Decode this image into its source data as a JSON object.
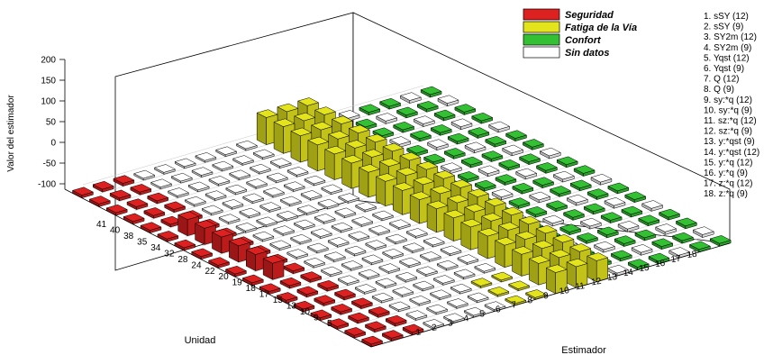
{
  "chart_data": {
    "type": "bar3d",
    "zlabel": "Valor del estimador",
    "xlabel": "Estimador",
    "ylabel": "Unidad",
    "z_ticks": [
      "200",
      "150",
      "100",
      "50",
      "0",
      "-50",
      "-100"
    ],
    "z_range": [
      -100,
      200
    ],
    "x_ticks": [
      "1",
      "2",
      "3",
      "4",
      "5",
      "6",
      "7",
      "8",
      "9",
      "10",
      "11",
      "12",
      "13",
      "14",
      "15",
      "16",
      "17",
      "18"
    ],
    "y_ticks": [
      "5",
      "9",
      "10",
      "13",
      "15",
      "17",
      "18",
      "19",
      "20",
      "22",
      "24",
      "28",
      "32",
      "34",
      "35",
      "38",
      "40",
      "41"
    ],
    "legend": [
      {
        "label": "Seguridad",
        "color": "#dd2020"
      },
      {
        "label": "Fatiga de la Vía",
        "color": "#e4e41c"
      },
      {
        "label": "Confort",
        "color": "#33c033"
      },
      {
        "label": "Sin datos",
        "color": "#ffffff"
      }
    ],
    "estimators": [
      "1. sSY (12)",
      "2. sSY (9)",
      "3. SY2m (12)",
      "4. SY2m (9)",
      "5. Yqst (12)",
      "6. Yqst (9)",
      "7. Q (12)",
      "8. Q (9)",
      "9. sy:*q (12)",
      "10. sy:*q (9)",
      "11. sz:*q (12)",
      "12. sz:*q (9)",
      "13. y:*qst (9)",
      "14. y:*qst (12)",
      "15. y:*q (12)",
      "16. y:*q (9)",
      "17. z:*q (12)",
      "18. z:*q (9)"
    ]
  }
}
